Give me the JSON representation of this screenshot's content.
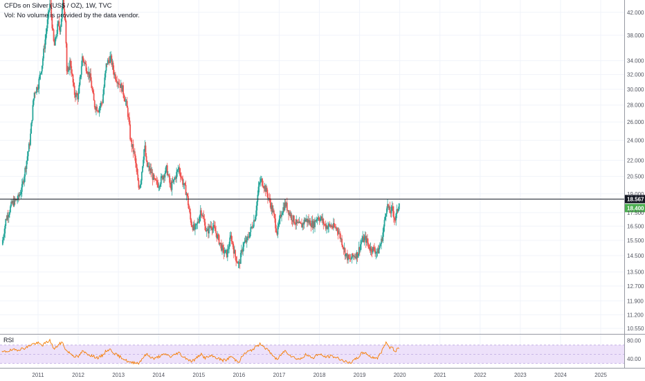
{
  "header": {
    "title": "CFDs on Silver (US$ / OZ), 1W, TVC",
    "vol_note": "Vol: No volume is provided by the data vendor."
  },
  "colors": {
    "up": "#26a69a",
    "down": "#ef5350",
    "rsi_line": "#f57c00",
    "rsi_band": "#ede1fa",
    "price_line": "#131722",
    "last_tag": "#4caf50"
  },
  "chart_data": [
    {
      "type": "candlestick",
      "title": "CFDs on Silver (US$ / OZ), 1W, TVC",
      "y_scale": "log",
      "ylim": [
        10.3,
        43.0
      ],
      "xlim": [
        2010.1,
        2025.6
      ],
      "x_ticks": [
        "2011",
        "2012",
        "2013",
        "2014",
        "2015",
        "2016",
        "2017",
        "2018",
        "2019",
        "2020",
        "2021",
        "2022",
        "2023",
        "2024",
        "2025"
      ],
      "y_ticks": [
        "42.000",
        "38.000",
        "34.000",
        "32.000",
        "30.000",
        "28.000",
        "26.000",
        "24.000",
        "22.000",
        "20.500",
        "19.000",
        "17.500",
        "16.500",
        "15.500",
        "14.500",
        "13.500",
        "12.700",
        "11.900",
        "11.200",
        "10.550"
      ],
      "horizontal_line": {
        "value": 18.567,
        "label": "18.567"
      },
      "last_price": {
        "value": 18.4,
        "label": "18.400"
      },
      "path": [
        [
          2010.1,
          15.2
        ],
        [
          2010.2,
          17.0
        ],
        [
          2010.35,
          18.2
        ],
        [
          2010.5,
          18.6
        ],
        [
          2010.6,
          19.5
        ],
        [
          2010.8,
          24.0
        ],
        [
          2010.9,
          29.5
        ],
        [
          2011.0,
          30.5
        ],
        [
          2011.1,
          33.5
        ],
        [
          2011.2,
          38.5
        ],
        [
          2011.3,
          44.0
        ],
        [
          2011.4,
          36.0
        ],
        [
          2011.5,
          40.0
        ],
        [
          2011.55,
          39.0
        ],
        [
          2011.62,
          44.0
        ],
        [
          2011.68,
          41.0
        ],
        [
          2011.72,
          31.5
        ],
        [
          2011.8,
          34.0
        ],
        [
          2011.9,
          29.5
        ],
        [
          2012.0,
          29.0
        ],
        [
          2012.1,
          34.5
        ],
        [
          2012.2,
          33.0
        ],
        [
          2012.3,
          31.5
        ],
        [
          2012.4,
          28.0
        ],
        [
          2012.5,
          27.5
        ],
        [
          2012.6,
          28.5
        ],
        [
          2012.7,
          33.5
        ],
        [
          2012.8,
          34.5
        ],
        [
          2012.9,
          32.0
        ],
        [
          2013.0,
          31.0
        ],
        [
          2013.1,
          30.0
        ],
        [
          2013.2,
          28.0
        ],
        [
          2013.25,
          26.5
        ],
        [
          2013.3,
          24.0
        ],
        [
          2013.4,
          22.5
        ],
        [
          2013.45,
          21.0
        ],
        [
          2013.5,
          19.5
        ],
        [
          2013.55,
          20.0
        ],
        [
          2013.65,
          23.5
        ],
        [
          2013.7,
          21.5
        ],
        [
          2013.8,
          21.0
        ],
        [
          2013.9,
          20.0
        ],
        [
          2014.0,
          19.8
        ],
        [
          2014.1,
          20.5
        ],
        [
          2014.2,
          21.2
        ],
        [
          2014.3,
          19.5
        ],
        [
          2014.4,
          20.3
        ],
        [
          2014.5,
          21.3
        ],
        [
          2014.6,
          20.0
        ],
        [
          2014.7,
          19.0
        ],
        [
          2014.8,
          16.8
        ],
        [
          2014.9,
          16.2
        ],
        [
          2015.0,
          17.0
        ],
        [
          2015.05,
          17.8
        ],
        [
          2015.2,
          16.0
        ],
        [
          2015.3,
          16.6
        ],
        [
          2015.4,
          16.2
        ],
        [
          2015.5,
          15.5
        ],
        [
          2015.6,
          14.8
        ],
        [
          2015.7,
          14.6
        ],
        [
          2015.8,
          15.8
        ],
        [
          2015.9,
          14.5
        ],
        [
          2016.0,
          13.9
        ],
        [
          2016.1,
          15.2
        ],
        [
          2016.2,
          15.5
        ],
        [
          2016.3,
          16.3
        ],
        [
          2016.4,
          17.2
        ],
        [
          2016.5,
          19.8
        ],
        [
          2016.55,
          20.2
        ],
        [
          2016.65,
          19.5
        ],
        [
          2016.75,
          18.5
        ],
        [
          2016.85,
          17.5
        ],
        [
          2016.95,
          16.0
        ],
        [
          2017.05,
          17.5
        ],
        [
          2017.15,
          18.2
        ],
        [
          2017.3,
          17.2
        ],
        [
          2017.45,
          16.6
        ],
        [
          2017.55,
          16.5
        ],
        [
          2017.65,
          17.0
        ],
        [
          2017.75,
          16.8
        ],
        [
          2017.85,
          16.6
        ],
        [
          2017.95,
          17.2
        ],
        [
          2018.05,
          17.0
        ],
        [
          2018.15,
          16.5
        ],
        [
          2018.3,
          16.5
        ],
        [
          2018.45,
          16.3
        ],
        [
          2018.55,
          15.5
        ],
        [
          2018.65,
          14.6
        ],
        [
          2018.75,
          14.2
        ],
        [
          2018.85,
          14.5
        ],
        [
          2018.95,
          14.6
        ],
        [
          2019.05,
          15.5
        ],
        [
          2019.15,
          15.6
        ],
        [
          2019.25,
          15.0
        ],
        [
          2019.35,
          14.9
        ],
        [
          2019.45,
          14.7
        ],
        [
          2019.55,
          15.5
        ],
        [
          2019.62,
          16.8
        ],
        [
          2019.68,
          18.2
        ],
        [
          2019.75,
          17.5
        ],
        [
          2019.82,
          17.8
        ],
        [
          2019.88,
          16.9
        ],
        [
          2019.95,
          17.8
        ],
        [
          2020.0,
          18.4
        ]
      ]
    },
    {
      "type": "line",
      "title": "RSI",
      "ylim": [
        25,
        85
      ],
      "y_ticks": [
        "80.00",
        "40.00"
      ],
      "band": [
        30,
        70
      ],
      "values": [
        [
          2010.1,
          54
        ],
        [
          2010.3,
          58
        ],
        [
          2010.5,
          60
        ],
        [
          2010.7,
          64
        ],
        [
          2010.85,
          72
        ],
        [
          2011.0,
          74
        ],
        [
          2011.1,
          69
        ],
        [
          2011.2,
          75
        ],
        [
          2011.3,
          80
        ],
        [
          2011.4,
          60
        ],
        [
          2011.5,
          70
        ],
        [
          2011.6,
          76
        ],
        [
          2011.7,
          58
        ],
        [
          2011.8,
          52
        ],
        [
          2011.9,
          46
        ],
        [
          2012.0,
          44
        ],
        [
          2012.1,
          56
        ],
        [
          2012.2,
          52
        ],
        [
          2012.35,
          46
        ],
        [
          2012.5,
          42
        ],
        [
          2012.6,
          47
        ],
        [
          2012.7,
          58
        ],
        [
          2012.8,
          60
        ],
        [
          2012.9,
          52
        ],
        [
          2013.0,
          46
        ],
        [
          2013.1,
          42
        ],
        [
          2013.2,
          36
        ],
        [
          2013.3,
          31
        ],
        [
          2013.4,
          33
        ],
        [
          2013.5,
          30
        ],
        [
          2013.6,
          42
        ],
        [
          2013.7,
          50
        ],
        [
          2013.8,
          44
        ],
        [
          2013.9,
          40
        ],
        [
          2014.0,
          45
        ],
        [
          2014.1,
          48
        ],
        [
          2014.2,
          50
        ],
        [
          2014.3,
          44
        ],
        [
          2014.4,
          49
        ],
        [
          2014.5,
          54
        ],
        [
          2014.6,
          45
        ],
        [
          2014.7,
          41
        ],
        [
          2014.8,
          35
        ],
        [
          2014.9,
          38
        ],
        [
          2015.0,
          47
        ],
        [
          2015.05,
          50
        ],
        [
          2015.15,
          42
        ],
        [
          2015.3,
          46
        ],
        [
          2015.4,
          44
        ],
        [
          2015.5,
          40
        ],
        [
          2015.6,
          37
        ],
        [
          2015.7,
          38
        ],
        [
          2015.8,
          46
        ],
        [
          2015.9,
          38
        ],
        [
          2016.0,
          34
        ],
        [
          2016.1,
          48
        ],
        [
          2016.2,
          55
        ],
        [
          2016.3,
          58
        ],
        [
          2016.45,
          68
        ],
        [
          2016.55,
          73
        ],
        [
          2016.65,
          64
        ],
        [
          2016.75,
          56
        ],
        [
          2016.85,
          47
        ],
        [
          2016.95,
          37
        ],
        [
          2017.05,
          50
        ],
        [
          2017.15,
          58
        ],
        [
          2017.3,
          46
        ],
        [
          2017.45,
          40
        ],
        [
          2017.55,
          40
        ],
        [
          2017.65,
          49
        ],
        [
          2017.75,
          45
        ],
        [
          2017.85,
          42
        ],
        [
          2017.95,
          50
        ],
        [
          2018.05,
          48
        ],
        [
          2018.15,
          44
        ],
        [
          2018.3,
          46
        ],
        [
          2018.45,
          42
        ],
        [
          2018.55,
          38
        ],
        [
          2018.65,
          34
        ],
        [
          2018.75,
          30
        ],
        [
          2018.85,
          36
        ],
        [
          2018.95,
          42
        ],
        [
          2019.05,
          52
        ],
        [
          2019.15,
          54
        ],
        [
          2019.25,
          45
        ],
        [
          2019.35,
          43
        ],
        [
          2019.45,
          42
        ],
        [
          2019.55,
          56
        ],
        [
          2019.62,
          70
        ],
        [
          2019.68,
          76
        ],
        [
          2019.75,
          64
        ],
        [
          2019.82,
          66
        ],
        [
          2019.88,
          54
        ],
        [
          2019.95,
          62
        ],
        [
          2020.0,
          66
        ]
      ]
    }
  ],
  "rsi_label": "RSI"
}
